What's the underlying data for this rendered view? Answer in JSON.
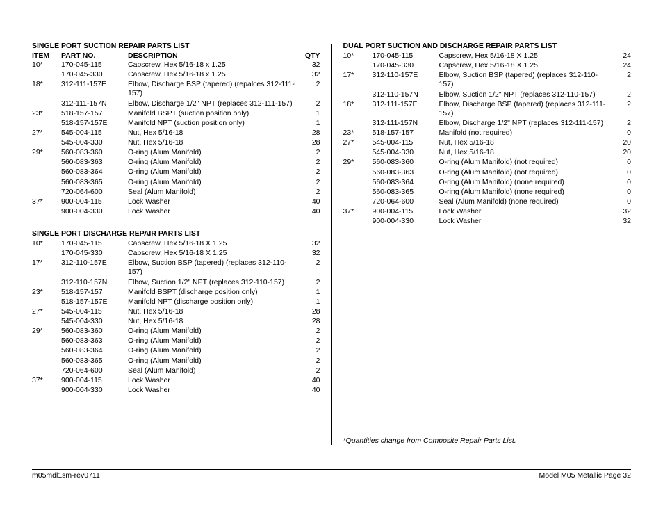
{
  "left": {
    "section1": {
      "title": "SINGLE PORT SUCTION REPAIR PARTS LIST",
      "headers": {
        "item": "ITEM",
        "part": "PART NO.",
        "desc": "DESCRIPTION",
        "qty": "QTY"
      },
      "rows": [
        {
          "item": "10*",
          "part": "170-045-115",
          "desc": "Capscrew, Hex 5/16-18 x 1.25",
          "qty": "32"
        },
        {
          "item": "",
          "part": "170-045-330",
          "desc": "Capscrew, Hex 5/16-18 x 1.25",
          "qty": "32"
        },
        {
          "item": "18*",
          "part": "312-111-157E",
          "desc": "Elbow, Discharge  BSP (tapered) (repalces 312-111-157)",
          "qty": "2"
        },
        {
          "item": "",
          "part": "312-111-157N",
          "desc": "Elbow, Discharge 1/2\" NPT (replaces 312-111-157)",
          "qty": "2"
        },
        {
          "item": "23*",
          "part": "518-157-157",
          "desc": "Manifold BSPT (suction position only)",
          "qty": "1"
        },
        {
          "item": "",
          "part": "518-157-157E",
          "desc": "Manifold NPT (suction position only)",
          "qty": "1"
        },
        {
          "item": "27*",
          "part": "545-004-115",
          "desc": "Nut, Hex 5/16-18",
          "qty": "28"
        },
        {
          "item": "",
          "part": "545-004-330",
          "desc": "Nut, Hex 5/16-18",
          "qty": "28"
        },
        {
          "item": "29*",
          "part": "560-083-360",
          "desc": "O-ring (Alum Manifold)",
          "qty": "2"
        },
        {
          "item": "",
          "part": "560-083-363",
          "desc": "O-ring (Alum Manifold)",
          "qty": "2"
        },
        {
          "item": "",
          "part": "560-083-364",
          "desc": "O-ring (Alum Manifold)",
          "qty": "2"
        },
        {
          "item": "",
          "part": "560-083-365",
          "desc": "O-ring (Alum Manifold)",
          "qty": "2"
        },
        {
          "item": "",
          "part": "720-064-600",
          "desc": "Seal (Alum Manifold)",
          "qty": "2"
        },
        {
          "item": "37*",
          "part": "900-004-115",
          "desc": "Lock Washer",
          "qty": "40"
        },
        {
          "item": "",
          "part": "900-004-330",
          "desc": "Lock Washer",
          "qty": "40"
        }
      ]
    },
    "section2": {
      "title": "SINGLE PORT DISCHARGE REPAIR PARTS LIST",
      "rows": [
        {
          "item": "10*",
          "part": "170-045-115",
          "desc": "Capscrew, Hex 5/16-18 X 1.25",
          "qty": "32"
        },
        {
          "item": "",
          "part": "170-045-330",
          "desc": "Capscrew, Hex 5/16-18 X 1.25",
          "qty": "32"
        },
        {
          "item": "17*",
          "part": "312-110-157E",
          "desc": "Elbow, Suction BSP (tapered) (replaces 312-110-157)",
          "qty": "2"
        },
        {
          "item": "",
          "part": "312-110-157N",
          "desc": "Elbow, Suction 1/2\" NPT (replaces 312-110-157)",
          "qty": "2"
        },
        {
          "item": "23*",
          "part": "518-157-157",
          "desc": "Manifold BSPT (discharge position only)",
          "qty": "1"
        },
        {
          "item": "",
          "part": "518-157-157E",
          "desc": "Manifold NPT (discharge position only)",
          "qty": "1"
        },
        {
          "item": "27*",
          "part": "545-004-115",
          "desc": "Nut, Hex 5/16-18",
          "qty": "28"
        },
        {
          "item": "",
          "part": "545-004-330",
          "desc": "Nut, Hex 5/16-18",
          "qty": "28"
        },
        {
          "item": "29*",
          "part": "560-083-360",
          "desc": "O-ring (Alum Manifold)",
          "qty": "2"
        },
        {
          "item": "",
          "part": "560-083-363",
          "desc": "O-ring (Alum Manifold)",
          "qty": "2"
        },
        {
          "item": "",
          "part": "560-083-364",
          "desc": "O-ring (Alum Manifold)",
          "qty": "2"
        },
        {
          "item": "",
          "part": "560-083-365",
          "desc": "O-ring (Alum Manifold)",
          "qty": "2"
        },
        {
          "item": "",
          "part": "720-064-600",
          "desc": "Seal (Alum Manifold)",
          "qty": "2"
        },
        {
          "item": "37*",
          "part": "900-004-115",
          "desc": "Lock Washer",
          "qty": "40"
        },
        {
          "item": "",
          "part": "900-004-330",
          "desc": "Lock Washer",
          "qty": "40"
        }
      ]
    }
  },
  "right": {
    "section1": {
      "title": "DUAL PORT SUCTION AND DISCHARGE REPAIR PARTS LIST",
      "rows": [
        {
          "item": "10*",
          "part": "170-045-115",
          "desc": "Capscrew, Hex 5/16-18 X 1.25",
          "qty": "24"
        },
        {
          "item": "",
          "part": "170-045-330",
          "desc": "Capscrew, Hex 5/16-18 X 1.25",
          "qty": "24"
        },
        {
          "item": "17*",
          "part": "312-110-157E",
          "desc": "Elbow, Suction  BSP  (tapered) (replaces 312-110-157)",
          "qty": "2"
        },
        {
          "item": "",
          "part": "312-110-157N",
          "desc": "Elbow, Suction 1/2\" NPT (replaces 312-110-157)",
          "qty": "2"
        },
        {
          "item": "18*",
          "part": "312-111-157E",
          "desc": "Elbow, Discharge  BSP (tapered) (replaces 312-111-157)",
          "qty": "2"
        },
        {
          "item": "",
          "part": "312-111-157N",
          "desc": "Elbow, Discharge 1/2\" NPT (replaces 312-111-157)",
          "qty": "2"
        },
        {
          "item": "23*",
          "part": "518-157-157",
          "desc": "Manifold (not required)",
          "qty": "0"
        },
        {
          "item": "27*",
          "part": "545-004-115",
          "desc": "Nut, Hex 5/16-18",
          "qty": "20"
        },
        {
          "item": "",
          "part": "545-004-330",
          "desc": "Nut, Hex 5/16-18",
          "qty": "20"
        },
        {
          "item": "29*",
          "part": "560-083-360",
          "desc": "O-ring (Alum Manifold) (not required)",
          "qty": "0"
        },
        {
          "item": "",
          "part": "560-083-363",
          "desc": "O-ring (Alum Manifold) (not required)",
          "qty": "0"
        },
        {
          "item": "",
          "part": "560-083-364",
          "desc": "O-ring (Alum Manifold) (none required)",
          "qty": "0"
        },
        {
          "item": "",
          "part": "560-083-365",
          "desc": "O-ring (Alum Manifold) (none required)",
          "qty": "0"
        },
        {
          "item": "",
          "part": "720-064-600",
          "desc": "Seal (Alum Manifold) (none required)",
          "qty": "0"
        },
        {
          "item": "37*",
          "part": "900-004-115",
          "desc": "Lock Washer",
          "qty": "32"
        },
        {
          "item": "",
          "part": "900-004-330",
          "desc": "Lock Washer",
          "qty": "32"
        }
      ]
    },
    "footnote": "*Quantities change from Composite Repair Parts List."
  },
  "footer": {
    "left": "m05mdl1sm-rev0711",
    "right": "Model M05 Metallic Page 32"
  }
}
